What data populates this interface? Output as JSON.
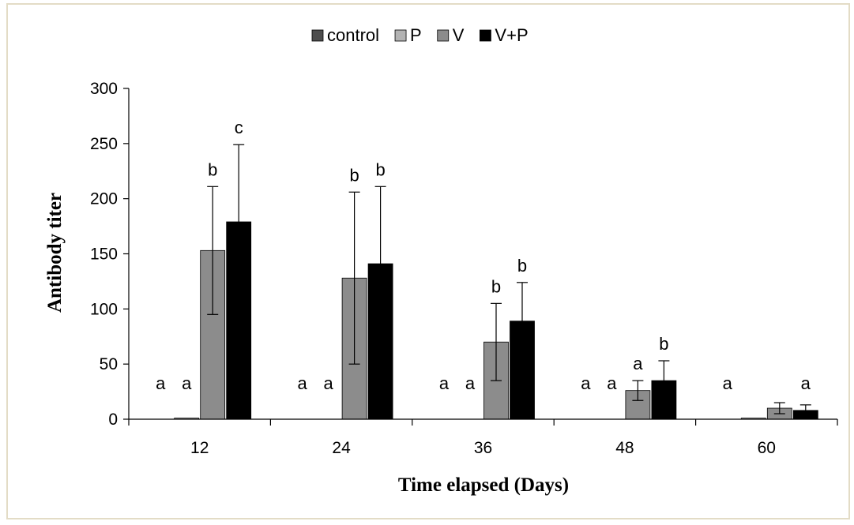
{
  "chart_data": {
    "type": "bar",
    "title": "",
    "xlabel": "Time elapsed (Days)",
    "ylabel": "Antibody titer",
    "categories": [
      "12",
      "24",
      "36",
      "48",
      "60"
    ],
    "ylim": [
      0,
      300
    ],
    "yticks": [
      0,
      50,
      100,
      150,
      200,
      250,
      300
    ],
    "grid": false,
    "legend_position": "top",
    "series": [
      {
        "name": "control",
        "color": "#4d4d4d",
        "values": [
          0,
          0,
          0,
          0,
          0
        ],
        "errors": [
          0,
          0,
          0,
          0,
          0
        ]
      },
      {
        "name": "P",
        "color": "#b3b3b3",
        "values": [
          1,
          0,
          0,
          0,
          1
        ],
        "errors": [
          0,
          0,
          0,
          0,
          0
        ]
      },
      {
        "name": "V",
        "color": "#8c8c8c",
        "values": [
          153,
          128,
          70,
          26,
          10
        ],
        "errors": [
          58,
          78,
          35,
          9,
          5
        ]
      },
      {
        "name": "V+P",
        "color": "#000000",
        "values": [
          179,
          141,
          89,
          35,
          8
        ],
        "errors": [
          70,
          70,
          35,
          18,
          5
        ]
      }
    ],
    "annotations": [
      [
        "a",
        "a",
        "b",
        "c"
      ],
      [
        "a",
        "a",
        "b",
        "b"
      ],
      [
        "a",
        "a",
        "b",
        "b"
      ],
      [
        "a",
        "a",
        "a",
        "b"
      ],
      [
        "a",
        "",
        "",
        "a"
      ]
    ]
  }
}
